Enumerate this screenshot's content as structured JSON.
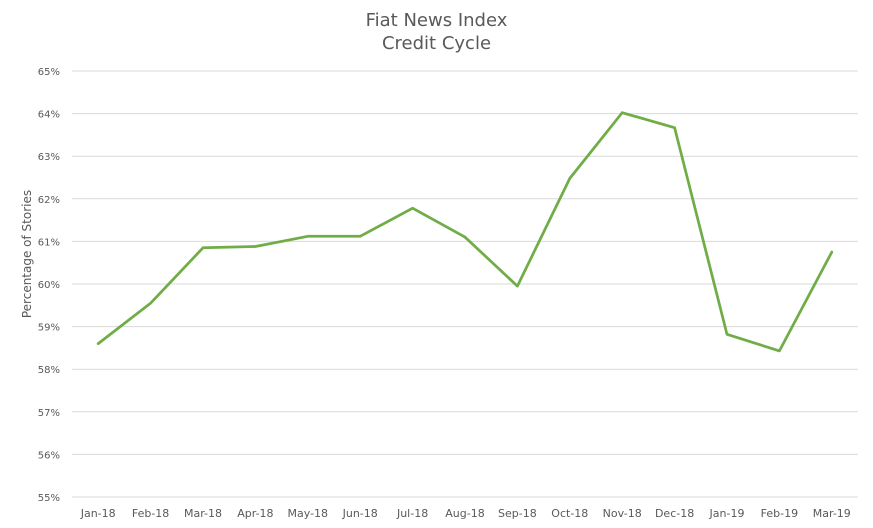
{
  "chart_data": {
    "type": "line",
    "title": [
      "Fiat News Index",
      "Credit Cycle"
    ],
    "xlabel": "",
    "ylabel": "Percentage of Stories",
    "categories": [
      "Jan-18",
      "Feb-18",
      "Mar-18",
      "Apr-18",
      "May-18",
      "Jun-18",
      "Jul-18",
      "Aug-18",
      "Sep-18",
      "Oct-18",
      "Nov-18",
      "Dec-18",
      "Jan-19",
      "Feb-19",
      "Mar-19"
    ],
    "series": [
      {
        "color": "#70ad47",
        "values": [
          58.6,
          59.55,
          60.85,
          60.88,
          61.12,
          61.12,
          61.78,
          61.1,
          59.95,
          62.48,
          64.02,
          63.67,
          58.82,
          58.43,
          60.75
        ]
      }
    ],
    "ylim": [
      55,
      65
    ],
    "yticks": [
      "55%",
      "56%",
      "57%",
      "58%",
      "59%",
      "60%",
      "61%",
      "62%",
      "63%",
      "64%",
      "65%"
    ],
    "grid": true,
    "legend": "none"
  }
}
